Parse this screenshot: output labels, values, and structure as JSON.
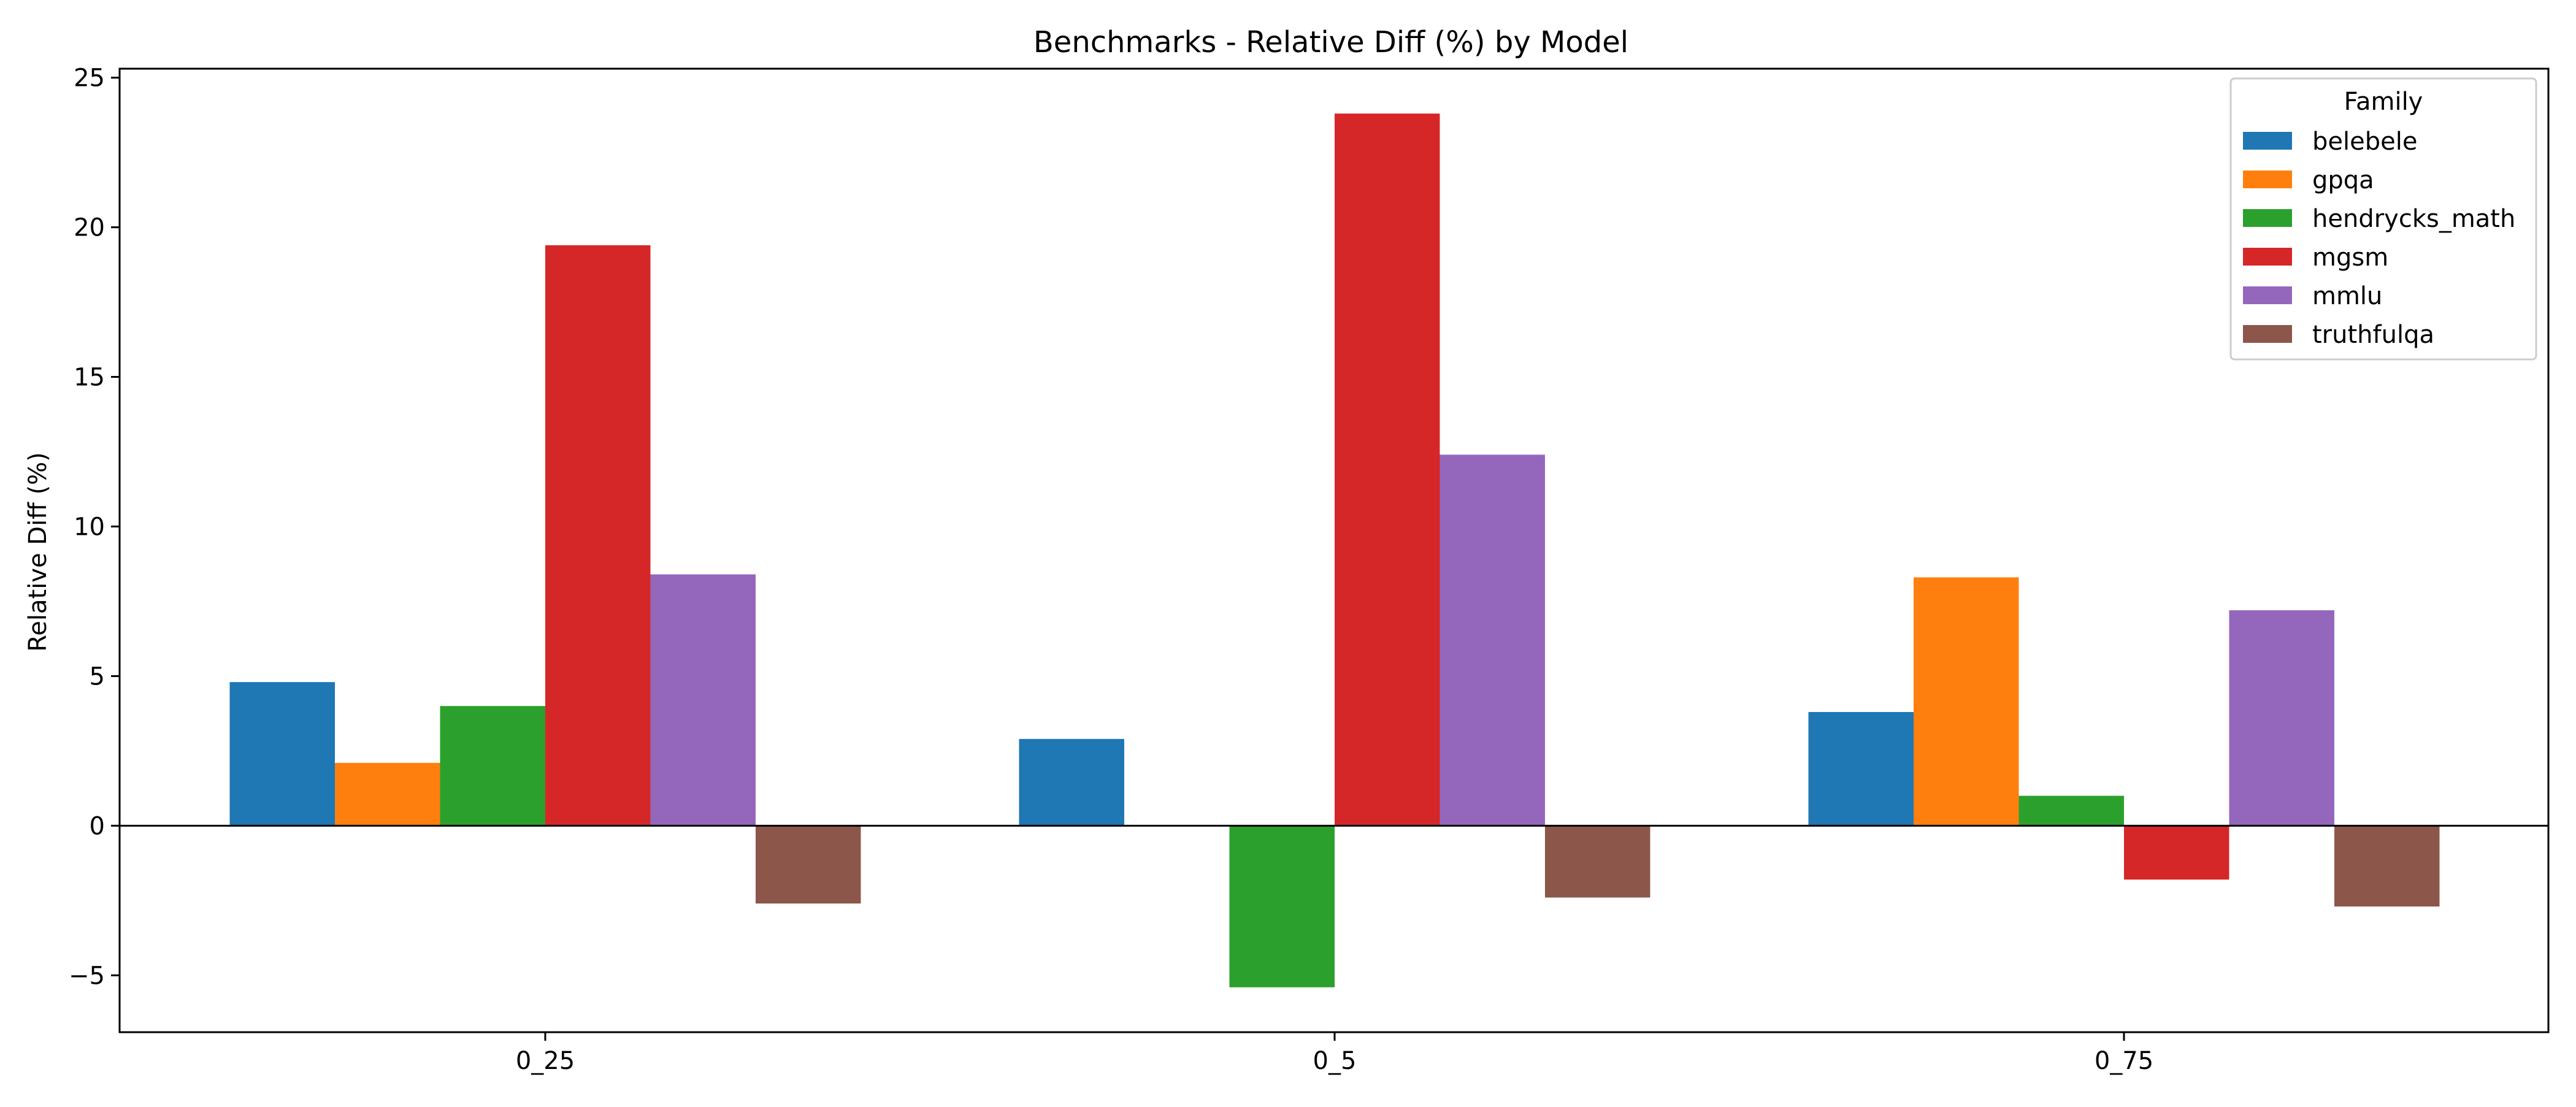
{
  "chart_data": {
    "type": "bar",
    "title": "Benchmarks - Relative Diff (%) by Model",
    "xlabel": "",
    "ylabel": "Relative Diff (%)",
    "categories": [
      "0_25",
      "0_5",
      "0_75"
    ],
    "ylim": [
      -6.9,
      25.3
    ],
    "yticks": [
      -5,
      0,
      5,
      10,
      15,
      20,
      25
    ],
    "ytick_labels": [
      "−5",
      "0",
      "5",
      "10",
      "15",
      "20",
      "25"
    ],
    "grid": false,
    "zero_line": true,
    "legend": {
      "title": "Family",
      "placement": "top-right"
    },
    "series": [
      {
        "name": "belebele",
        "color": "#1f77b4",
        "values": [
          4.8,
          2.9,
          3.8
        ]
      },
      {
        "name": "gpqa",
        "color": "#ff7f0e",
        "values": [
          2.1,
          0,
          8.3
        ]
      },
      {
        "name": "hendrycks_math",
        "color": "#2ca02c",
        "values": [
          4.0,
          -5.4,
          1.0
        ]
      },
      {
        "name": "mgsm",
        "color": "#d62728",
        "values": [
          19.4,
          23.8,
          -1.8
        ]
      },
      {
        "name": "mmlu",
        "color": "#9467bd",
        "values": [
          8.4,
          12.4,
          7.2
        ]
      },
      {
        "name": "truthfulqa",
        "color": "#8c564b",
        "values": [
          -2.6,
          -2.4,
          -2.7
        ]
      }
    ]
  }
}
